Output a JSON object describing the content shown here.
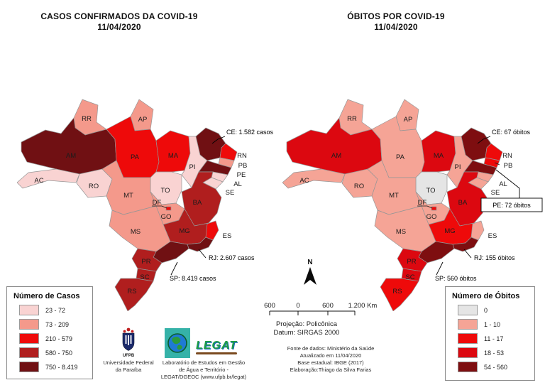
{
  "titles": {
    "cases_line1": "CASOS CONFIRMADOS DA COVID-19",
    "cases_line2": "11/04/2020",
    "obitos_line1": "ÓBITOS POR COVID-19",
    "obitos_line2": "11/04/2020"
  },
  "palette": {
    "c1": "#F9D3D2",
    "c2": "#F4998B",
    "c3": "#EE0A0A",
    "c4": "#B01E1E",
    "c5": "#701013",
    "d0": "#E5E5E5",
    "d1": "#F5A496",
    "d2": "#EE0A0A",
    "d3": "#DC0810",
    "d4": "#7E0E10"
  },
  "state_labels": {
    "AC": "AC",
    "AM": "AM",
    "RR": "RR",
    "RO": "RO",
    "AP": "AP",
    "PA": "PA",
    "TO": "TO",
    "MA": "MA",
    "PI": "PI",
    "RN": "RN",
    "PB": "PB",
    "PE": "PE",
    "AL": "AL",
    "SE": "SE",
    "BA": "BA",
    "MT": "MT",
    "GO": "GO",
    "DF": "DF",
    "MS": "MS",
    "MG": "MG",
    "ES": "ES",
    "PR": "PR",
    "SC": "SC",
    "RS": "RS"
  },
  "maps": {
    "cases": {
      "classes": {
        "AC": "c1",
        "AM": "c5",
        "RR": "c2",
        "RO": "c1",
        "AP": "c2",
        "PA": "c3",
        "TO": "c1",
        "MA": "c3",
        "PI": "c1",
        "CE": "c5",
        "RN": "c3",
        "PB": "c2",
        "PE": "c5",
        "AL": "c1",
        "SE": "c1",
        "BA": "c4",
        "MT": "c2",
        "GO": "c2",
        "DF": "c3",
        "MS": "c2",
        "MG": "c4",
        "ES": "c3",
        "RJ": "c5",
        "SP": "c5",
        "PR": "c4",
        "SC": "c4",
        "RS": "c4"
      }
    },
    "obitos": {
      "classes": {
        "AC": "d1",
        "AM": "d3",
        "RR": "d1",
        "RO": "d1",
        "AP": "d1",
        "PA": "d1",
        "TO": "d0",
        "MA": "d3",
        "PI": "d1",
        "CE": "d4",
        "RN": "d2",
        "PB": "d2",
        "PE": "d4",
        "AL": "d1",
        "SE": "d1",
        "BA": "d3",
        "MT": "d1",
        "GO": "d1",
        "DF": "d2",
        "MS": "d1",
        "MG": "d2",
        "ES": "d1",
        "RJ": "d4",
        "SP": "d4",
        "PR": "d3",
        "SC": "d3",
        "RS": "d2"
      }
    }
  },
  "annotations": {
    "cases": {
      "ce": "CE: 1.582 casos",
      "rj": "RJ: 2.607 casos",
      "sp": "SP: 8.419 casos"
    },
    "obitos": {
      "ce": "CE: 67 óbitos",
      "pe": "PE: 72 óbitos",
      "rj": "RJ: 155 óbitos",
      "sp": "SP: 560 óbitos"
    }
  },
  "legends": {
    "cases": {
      "title": "Número de Casos",
      "items": [
        {
          "label": "23 - 72",
          "color_key": "c1"
        },
        {
          "label": "73 - 209",
          "color_key": "c2"
        },
        {
          "label": "210 - 579",
          "color_key": "c3"
        },
        {
          "label": "580 - 750",
          "color_key": "c4"
        },
        {
          "label": "750 - 8.419",
          "color_key": "c5"
        }
      ]
    },
    "obitos": {
      "title": "Número de Óbitos",
      "items": [
        {
          "label": "0",
          "color_key": "d0"
        },
        {
          "label": "1 - 10",
          "color_key": "d1"
        },
        {
          "label": "11 - 17",
          "color_key": "d2"
        },
        {
          "label": "18 - 53",
          "color_key": "d3"
        },
        {
          "label": "54 - 560",
          "color_key": "d4"
        }
      ]
    }
  },
  "north_label": "N",
  "scalebar": {
    "labels": [
      "600",
      "0",
      "600",
      "1.200 Km"
    ]
  },
  "projection": {
    "line1": "Projeção: Policônica",
    "line2": "Datum: SIRGAS 2000"
  },
  "source": {
    "line1": "Fonte de dados: Ministério da Saúde",
    "line2": "Atualizado em 11/04/2020",
    "line3": "Base estadual: IBGE (2017)",
    "line4": "Elaboração:Thiago da Silva Farias"
  },
  "logos": {
    "ufpb_text": "UFPB",
    "ufpb_caption_line1": "Universidade Federal",
    "ufpb_caption_line2": "da Paraíba",
    "legat_wordmark": "LEGAT",
    "legat_caption_line1": "Laboratório de Estudos em Gestão",
    "legat_caption_line2": "de Água e Território -",
    "legat_caption_line3": "LEGAT/DGEOC (www.ufpb.br/legat)"
  }
}
